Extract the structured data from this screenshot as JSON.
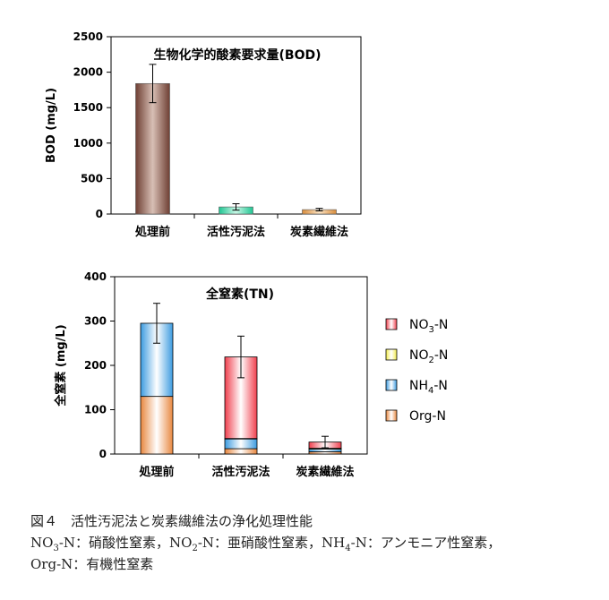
{
  "chart_data": [
    {
      "type": "bar",
      "title": "生物化学的酸素要求量(BOD)",
      "ylabel": "BOD (mg/L)",
      "xlabel": "",
      "ylim": [
        0,
        2500
      ],
      "yticks": [
        0,
        500,
        1000,
        1500,
        2000,
        2500
      ],
      "categories": [
        "処理前",
        "活性汚泥法",
        "炭素繊維法"
      ],
      "values": [
        1840,
        100,
        62
      ],
      "errors": [
        270,
        45,
        18
      ],
      "bar_colors": [
        "#8B5A4A",
        "#2FD9A6",
        "#E6A45A"
      ],
      "grid": false
    },
    {
      "type": "bar",
      "stacked": true,
      "title": "全窒素(TN)",
      "ylabel": "全窒素 (mg/L)",
      "xlabel": "",
      "ylim": [
        0,
        400
      ],
      "yticks": [
        0,
        100,
        200,
        300,
        400
      ],
      "categories": [
        "処理前",
        "活性汚泥法",
        "炭素繊維法"
      ],
      "series": [
        {
          "name": "Org-N",
          "values": [
            130,
            12,
            5
          ],
          "color": "#E8873F"
        },
        {
          "name": "NH4-N",
          "values": [
            165,
            22,
            6
          ],
          "color": "#3C9BE0"
        },
        {
          "name": "NO2-N",
          "values": [
            0,
            1,
            2
          ],
          "color": "#F2EC4A"
        },
        {
          "name": "NO3-N",
          "values": [
            0,
            184,
            14
          ],
          "color": "#F0404E"
        }
      ],
      "errors": [
        45,
        47,
        13
      ],
      "legend": {
        "placement": "right",
        "items": [
          {
            "main": "NO",
            "sub": "3",
            "tail": "-N",
            "color": "#F0404E"
          },
          {
            "main": "NO",
            "sub": "2",
            "tail": "-N",
            "color": "#F2EC4A"
          },
          {
            "main": "NH",
            "sub": "4",
            "tail": "-N",
            "color": "#3C9BE0"
          },
          {
            "main": "Org-N",
            "sub": "",
            "tail": "",
            "color": "#E8873F"
          }
        ]
      },
      "grid": false
    }
  ],
  "caption": {
    "line1": "図４　活性汚泥法と炭素繊維法の浄化処理性能",
    "line2": "NO3-N：硝酸性窒素，NO2-N：亜硝酸性窒素，NH4-N：アンモニア性窒素，",
    "line3": "Org-N：有機性窒素"
  }
}
